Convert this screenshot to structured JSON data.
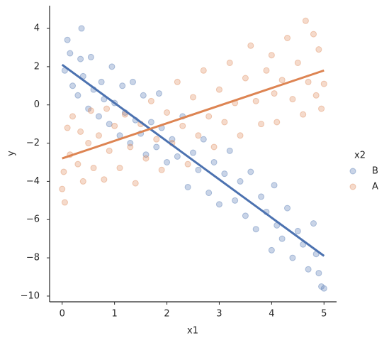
{
  "chart_data": {
    "type": "scatter",
    "xlabel": "x1",
    "ylabel": "y",
    "legend_title": "x2",
    "legend": "right",
    "xlim": [
      -0.24,
      5.24
    ],
    "ylim": [
      -10.3,
      5.19
    ],
    "xticks": [
      0,
      1,
      2,
      3,
      4,
      5
    ],
    "yticks": [
      {
        "value": 4,
        "label": "4"
      },
      {
        "value": 2,
        "label": "2"
      },
      {
        "value": 0,
        "label": "0"
      },
      {
        "value": -2,
        "label": "−2"
      },
      {
        "value": -4,
        "label": "−4"
      },
      {
        "value": -6,
        "label": "−6"
      },
      {
        "value": -8,
        "label": "−8"
      },
      {
        "value": -10,
        "label": "−10"
      }
    ],
    "series": [
      {
        "name": "B",
        "color": "#4c72b0",
        "x": [
          0.05,
          0.1,
          0.15,
          0.2,
          0.3,
          0.35,
          0.37,
          0.4,
          0.5,
          0.55,
          0.6,
          0.7,
          0.75,
          0.8,
          0.9,
          0.95,
          1.0,
          1.1,
          1.15,
          1.2,
          1.3,
          1.35,
          1.4,
          1.5,
          1.55,
          1.6,
          1.7,
          1.8,
          1.85,
          1.9,
          2.0,
          2.1,
          2.2,
          2.3,
          2.4,
          2.5,
          2.6,
          2.7,
          2.8,
          2.9,
          3.0,
          3.1,
          3.2,
          3.3,
          3.4,
          3.5,
          3.6,
          3.7,
          3.8,
          3.9,
          4.0,
          4.05,
          4.1,
          4.2,
          4.3,
          4.4,
          4.5,
          4.6,
          4.7,
          4.8,
          4.9,
          4.95,
          5.0,
          4.85
        ],
        "values": [
          1.8,
          3.4,
          2.7,
          1.0,
          0.5,
          2.4,
          4.0,
          1.5,
          -0.2,
          2.5,
          0.8,
          -0.6,
          1.2,
          0.3,
          -1.0,
          2.0,
          0.1,
          -1.6,
          1.0,
          -0.4,
          -2.0,
          1.2,
          -0.8,
          -1.5,
          0.5,
          -2.6,
          -0.9,
          -2.2,
          0.6,
          -1.2,
          -3.0,
          -1.8,
          -2.7,
          -0.6,
          -4.3,
          -2.5,
          -3.4,
          -1.8,
          -4.6,
          -3.0,
          -5.2,
          -3.6,
          -2.4,
          -5.0,
          -4.0,
          -5.8,
          -3.5,
          -6.5,
          -4.8,
          -5.6,
          -7.6,
          -4.2,
          -6.3,
          -7.0,
          -5.4,
          -8.0,
          -6.6,
          -7.3,
          -8.6,
          -6.2,
          -8.8,
          -9.5,
          -9.6,
          -7.8
        ],
        "fit": {
          "x": [
            0,
            5
          ],
          "values": [
            2.1,
            -7.9
          ]
        }
      },
      {
        "name": "A",
        "color": "#dd8452",
        "x": [
          0.0,
          0.03,
          0.05,
          0.1,
          0.15,
          0.2,
          0.3,
          0.35,
          0.4,
          0.5,
          0.55,
          0.6,
          0.7,
          0.8,
          0.85,
          0.9,
          1.0,
          1.1,
          1.2,
          1.3,
          1.4,
          1.5,
          1.6,
          1.7,
          1.8,
          1.9,
          2.0,
          2.1,
          2.2,
          2.3,
          2.4,
          2.5,
          2.6,
          2.7,
          2.8,
          2.9,
          3.0,
          3.1,
          3.2,
          3.3,
          3.4,
          3.5,
          3.6,
          3.7,
          3.8,
          3.9,
          4.0,
          4.05,
          4.1,
          4.2,
          4.3,
          4.4,
          4.5,
          4.6,
          4.65,
          4.7,
          4.8,
          4.85,
          4.9,
          4.95,
          5.0
        ],
        "values": [
          -4.4,
          -3.5,
          -5.1,
          -1.2,
          -2.6,
          -0.6,
          -3.1,
          -1.4,
          -4.0,
          -2.0,
          -0.3,
          -3.3,
          -1.6,
          -3.9,
          -0.2,
          -2.4,
          -1.1,
          -3.3,
          -0.5,
          -2.2,
          -4.1,
          -1.0,
          -2.8,
          0.2,
          -1.8,
          -3.4,
          -0.4,
          -2.0,
          1.2,
          -1.1,
          -3.1,
          0.4,
          -1.6,
          1.8,
          -0.6,
          -2.2,
          0.8,
          -0.9,
          2.2,
          0.1,
          -1.6,
          1.4,
          3.1,
          0.2,
          -1.0,
          1.8,
          2.6,
          0.6,
          -0.9,
          1.3,
          3.5,
          0.3,
          2.2,
          -0.5,
          4.4,
          1.2,
          3.7,
          0.5,
          2.9,
          -0.2,
          1.1
        ],
        "fit": {
          "x": [
            0,
            5
          ],
          "values": [
            -2.8,
            1.8
          ]
        }
      }
    ]
  }
}
